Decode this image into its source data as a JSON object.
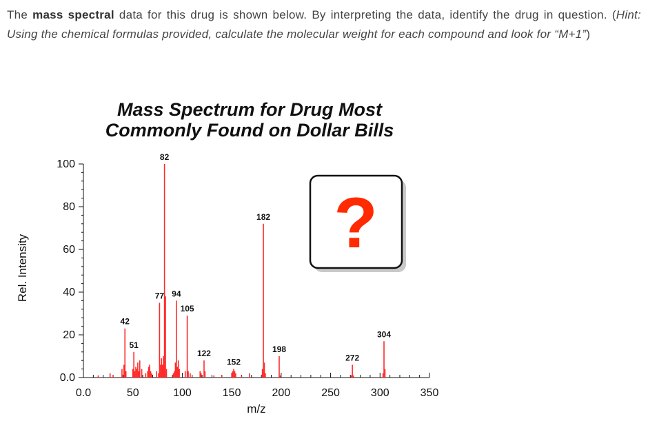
{
  "question": {
    "part1": "The ",
    "bold": "mass spectral",
    "part2": " data for this drug is shown below.  By interpreting the data, identify the drug in question. (",
    "italic": "Hint: Using the chemical formulas provided, calculate the molecular weight for each compound and look for “M+1”",
    "part3": ")"
  },
  "chart_data": {
    "type": "bar",
    "title": [
      "Mass Spectrum for Drug Most",
      "Commonly Found on Dollar Bills"
    ],
    "xlabel": "m/z",
    "ylabel": "Rel. Intensity",
    "xlim": [
      0,
      350
    ],
    "ylim": [
      0,
      100
    ],
    "x_ticks": [
      0,
      50,
      100,
      150,
      200,
      250,
      300,
      350
    ],
    "x_tick_labels": [
      "0.0",
      "50",
      "100",
      "150",
      "200",
      "250",
      "300",
      "350"
    ],
    "y_ticks": [
      0,
      20,
      40,
      60,
      80,
      100
    ],
    "y_tick_labels": [
      "0.0",
      "20",
      "40",
      "60",
      "80",
      "100"
    ],
    "bar_color": "#ff2a2a",
    "peaks": [
      {
        "mz": 42,
        "intensity": 23,
        "label": "42"
      },
      {
        "mz": 51,
        "intensity": 12,
        "label": "51"
      },
      {
        "mz": 77,
        "intensity": 35,
        "label": "77"
      },
      {
        "mz": 82,
        "intensity": 100,
        "label": "82"
      },
      {
        "mz": 94,
        "intensity": 36,
        "label": "94"
      },
      {
        "mz": 105,
        "intensity": 29,
        "label": "105"
      },
      {
        "mz": 122,
        "intensity": 8,
        "label": "122"
      },
      {
        "mz": 152,
        "intensity": 4,
        "label": "152"
      },
      {
        "mz": 182,
        "intensity": 72,
        "label": "182"
      },
      {
        "mz": 198,
        "intensity": 10,
        "label": "198"
      },
      {
        "mz": 272,
        "intensity": 6,
        "label": "272"
      },
      {
        "mz": 304,
        "intensity": 17,
        "label": "304"
      }
    ],
    "minor_peaks": [
      {
        "mz": 15,
        "intensity": 1
      },
      {
        "mz": 27,
        "intensity": 2
      },
      {
        "mz": 30,
        "intensity": 1
      },
      {
        "mz": 39,
        "intensity": 4
      },
      {
        "mz": 41,
        "intensity": 6
      },
      {
        "mz": 43,
        "intensity": 3
      },
      {
        "mz": 50,
        "intensity": 4
      },
      {
        "mz": 52,
        "intensity": 3
      },
      {
        "mz": 53,
        "intensity": 5
      },
      {
        "mz": 54,
        "intensity": 4
      },
      {
        "mz": 55,
        "intensity": 7
      },
      {
        "mz": 56,
        "intensity": 3
      },
      {
        "mz": 57,
        "intensity": 8
      },
      {
        "mz": 59,
        "intensity": 4
      },
      {
        "mz": 63,
        "intensity": 2
      },
      {
        "mz": 65,
        "intensity": 3
      },
      {
        "mz": 66,
        "intensity": 5
      },
      {
        "mz": 67,
        "intensity": 6
      },
      {
        "mz": 68,
        "intensity": 3
      },
      {
        "mz": 69,
        "intensity": 2
      },
      {
        "mz": 74,
        "intensity": 3
      },
      {
        "mz": 76,
        "intensity": 2
      },
      {
        "mz": 78,
        "intensity": 6
      },
      {
        "mz": 79,
        "intensity": 9
      },
      {
        "mz": 80,
        "intensity": 6
      },
      {
        "mz": 81,
        "intensity": 10
      },
      {
        "mz": 83,
        "intensity": 38
      },
      {
        "mz": 84,
        "intensity": 4
      },
      {
        "mz": 91,
        "intensity": 2
      },
      {
        "mz": 92,
        "intensity": 3
      },
      {
        "mz": 93,
        "intensity": 7
      },
      {
        "mz": 95,
        "intensity": 5
      },
      {
        "mz": 96,
        "intensity": 8
      },
      {
        "mz": 97,
        "intensity": 4
      },
      {
        "mz": 103,
        "intensity": 3
      },
      {
        "mz": 106,
        "intensity": 3
      },
      {
        "mz": 108,
        "intensity": 2
      },
      {
        "mz": 118,
        "intensity": 3
      },
      {
        "mz": 119,
        "intensity": 2
      },
      {
        "mz": 123,
        "intensity": 3
      },
      {
        "mz": 132,
        "intensity": 1
      },
      {
        "mz": 140,
        "intensity": 1
      },
      {
        "mz": 150,
        "intensity": 2
      },
      {
        "mz": 151,
        "intensity": 3
      },
      {
        "mz": 153,
        "intensity": 3
      },
      {
        "mz": 154,
        "intensity": 2
      },
      {
        "mz": 160,
        "intensity": 1
      },
      {
        "mz": 168,
        "intensity": 2
      },
      {
        "mz": 181,
        "intensity": 4
      },
      {
        "mz": 183,
        "intensity": 7
      },
      {
        "mz": 184,
        "intensity": 2
      },
      {
        "mz": 199,
        "intensity": 1
      },
      {
        "mz": 271,
        "intensity": 1
      },
      {
        "mz": 273,
        "intensity": 1
      },
      {
        "mz": 303,
        "intensity": 2
      },
      {
        "mz": 305,
        "intensity": 4
      }
    ],
    "inset": {
      "text": "?",
      "color": "#ff2a00"
    }
  }
}
